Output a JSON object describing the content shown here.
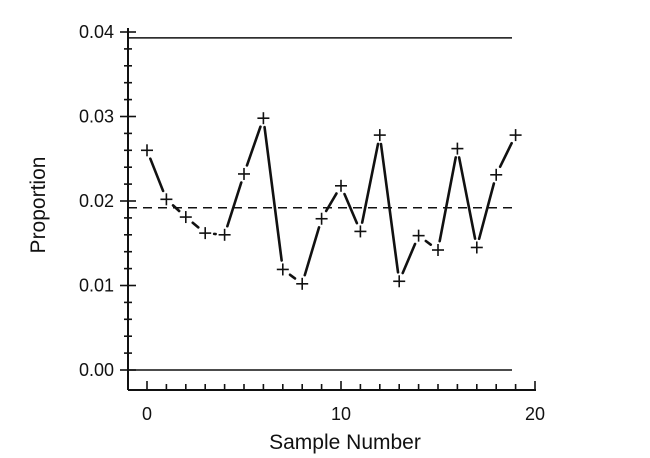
{
  "chart_data": {
    "type": "line",
    "title": "",
    "xlabel": "Sample Number",
    "ylabel": "Proportion",
    "xlim": [
      0,
      20
    ],
    "ylim": [
      0,
      0.04
    ],
    "x_ticks": [
      0,
      10,
      20
    ],
    "x_tick_labels": [
      "0",
      "10",
      "20"
    ],
    "y_ticks": [
      0.0,
      0.01,
      0.02,
      0.03,
      0.04
    ],
    "y_tick_labels": [
      "0.00",
      "0.01",
      "0.02",
      "0.03",
      "0.04"
    ],
    "grid": false,
    "marker": "plus",
    "line_color": "#111111",
    "series": [
      {
        "x": [
          0,
          1,
          2,
          3,
          4,
          5,
          6,
          7,
          8,
          9,
          10,
          11,
          12,
          13,
          14,
          15,
          16,
          17,
          18,
          19
        ],
        "values": [
          0.026,
          0.0202,
          0.0181,
          0.0162,
          0.016,
          0.0232,
          0.0298,
          0.0119,
          0.0102,
          0.0179,
          0.0218,
          0.0164,
          0.0278,
          0.0105,
          0.0159,
          0.0142,
          0.0262,
          0.0145,
          0.0231,
          0.0278
        ]
      }
    ],
    "reference_lines": [
      {
        "y": 0.0393,
        "style": "solid"
      },
      {
        "y": 0.0192,
        "style": "dashed"
      },
      {
        "y": 0.0,
        "style": "solid"
      }
    ]
  }
}
